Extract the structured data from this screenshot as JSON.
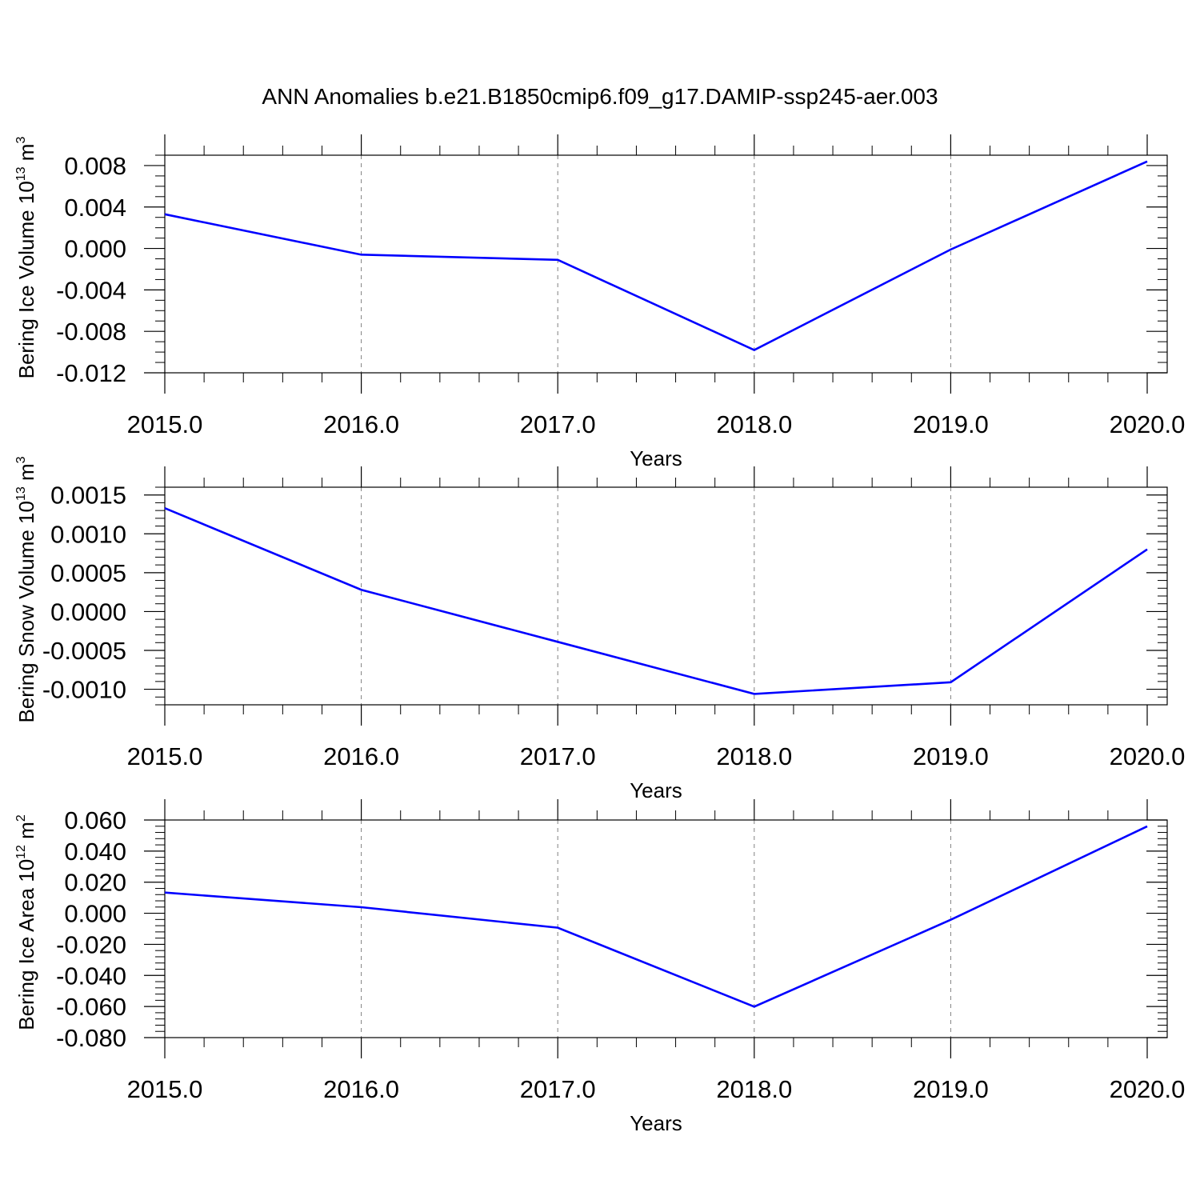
{
  "title": "ANN Anomalies b.e21.B1850cmip6.f09_g17.DAMIP-ssp245-aer.003",
  "chart_data": [
    {
      "type": "line",
      "ylabel": {
        "text": "Bering Ice Volume 10",
        "exp": "13",
        "unit": " m",
        "unit_exp": "3"
      },
      "xlabel": "Years",
      "x": [
        2015,
        2016,
        2017,
        2018,
        2019,
        2020
      ],
      "x_tick_labels": [
        "2015.0",
        "2016.0",
        "2017.0",
        "2018.0",
        "2019.0",
        "2020.0"
      ],
      "xlim": [
        2015,
        2020
      ],
      "series": [
        {
          "values": [
            0.0033,
            -0.0006,
            -0.0011,
            -0.0098,
            -0.0001,
            0.0084
          ],
          "color": "#0000ff"
        }
      ],
      "ylim": [
        -0.012,
        0.009
      ],
      "y_ticks": [
        0.008,
        0.004,
        0.0,
        -0.004,
        -0.008,
        -0.012
      ],
      "y_tick_labels": [
        "0.008",
        "0.004",
        "0.000",
        "-0.004",
        "-0.008",
        "-0.012"
      ],
      "y_minor_step": 0.001,
      "grid": "vertical dashed at major x ticks"
    },
    {
      "type": "line",
      "ylabel": {
        "text": "Bering Snow Volume 10",
        "exp": "13",
        "unit": " m",
        "unit_exp": "3"
      },
      "xlabel": "Years",
      "x": [
        2015,
        2016,
        2017,
        2018,
        2019,
        2020
      ],
      "x_tick_labels": [
        "2015.0",
        "2016.0",
        "2017.0",
        "2018.0",
        "2019.0",
        "2020.0"
      ],
      "xlim": [
        2015,
        2020
      ],
      "series": [
        {
          "values": [
            0.00133,
            0.00028,
            -0.00039,
            -0.00106,
            -0.00091,
            0.0008
          ],
          "color": "#0000ff"
        }
      ],
      "ylim": [
        -0.0012,
        0.0016
      ],
      "y_ticks": [
        0.0015,
        0.001,
        0.0005,
        0.0,
        -0.0005,
        -0.001
      ],
      "y_tick_labels": [
        "0.0015",
        "0.0010",
        "0.0005",
        "0.0000",
        "-0.0005",
        "-0.0010"
      ],
      "y_minor_step": 0.0001,
      "grid": "vertical dashed at major x ticks"
    },
    {
      "type": "line",
      "ylabel": {
        "text": "Bering Ice Area 10",
        "exp": "12",
        "unit": " m",
        "unit_exp": "2"
      },
      "xlabel": "Years",
      "x": [
        2015,
        2016,
        2017,
        2018,
        2019,
        2020
      ],
      "x_tick_labels": [
        "2015.0",
        "2016.0",
        "2017.0",
        "2018.0",
        "2019.0",
        "2020.0"
      ],
      "xlim": [
        2015,
        2020
      ],
      "series": [
        {
          "values": [
            0.0133,
            0.0039,
            -0.0093,
            -0.0601,
            -0.0042,
            0.0559
          ],
          "color": "#0000ff"
        }
      ],
      "ylim": [
        -0.08,
        0.06
      ],
      "y_ticks": [
        0.06,
        0.04,
        0.02,
        0.0,
        -0.02,
        -0.04,
        -0.06,
        -0.08
      ],
      "y_tick_labels": [
        "0.060",
        "0.040",
        "0.020",
        "0.000",
        "-0.020",
        "-0.040",
        "-0.060",
        "-0.080"
      ],
      "y_minor_step": 0.004,
      "grid": "vertical dashed at major x ticks"
    }
  ]
}
